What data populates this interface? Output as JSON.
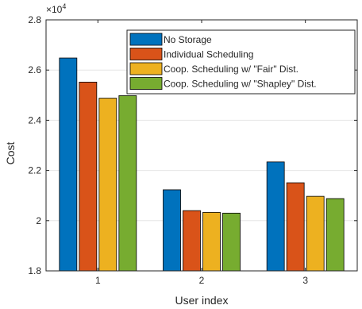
{
  "chart_data": {
    "type": "bar",
    "title": "",
    "xlabel": "User index",
    "ylabel": "Cost",
    "exponent_label": "×10",
    "exponent_power": "4",
    "categories": [
      "1",
      "2",
      "3"
    ],
    "ylim": [
      1.8,
      2.8
    ],
    "yticks": [
      "1.8",
      "2",
      "2.2",
      "2.4",
      "2.6",
      "2.8"
    ],
    "grid": true,
    "legend_position": "top-right",
    "series": [
      {
        "name": "No Storage",
        "color": "#0072BD",
        "values": [
          2.648,
          2.123,
          2.234
        ]
      },
      {
        "name": "Individual Scheduling",
        "color": "#D95319",
        "values": [
          2.552,
          2.04,
          2.151
        ]
      },
      {
        "name": "Coop. Scheduling w/ \"Fair\" Dist.",
        "color": "#EDB120",
        "values": [
          2.488,
          2.033,
          2.097
        ]
      },
      {
        "name": "Coop. Scheduling w/ \"Shapley\" Dist.",
        "color": "#77AC30",
        "values": [
          2.498,
          2.03,
          2.088
        ]
      }
    ]
  }
}
